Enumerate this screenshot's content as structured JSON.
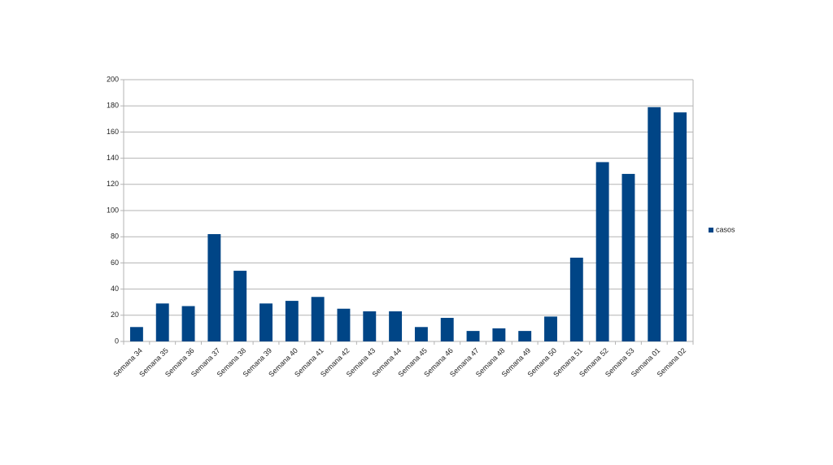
{
  "chart_data": {
    "type": "bar",
    "categories": [
      "Semana 34",
      "Semana 35",
      "Semana 36",
      "Semana 37",
      "Semana 38",
      "Semana 39",
      "Semana 40",
      "Semana 41",
      "Semana 42",
      "Semana 43",
      "Semana 44",
      "Semana 45",
      "Semana 46",
      "Semana 47",
      "Semana 48",
      "Semana 49",
      "Semana 50",
      "Semana 51",
      "Semana 52",
      "Semana 53",
      "Semana 01",
      "Semana 02"
    ],
    "series": [
      {
        "name": "casos",
        "color": "#004586",
        "values": [
          11,
          29,
          27,
          82,
          54,
          29,
          31,
          34,
          25,
          23,
          23,
          11,
          18,
          8,
          10,
          8,
          19,
          64,
          137,
          128,
          179,
          175
        ]
      }
    ],
    "ylim": [
      0,
      200
    ],
    "yticks": [
      0,
      20,
      40,
      60,
      80,
      100,
      120,
      140,
      160,
      180,
      200
    ],
    "grid": true,
    "legend": "right"
  }
}
